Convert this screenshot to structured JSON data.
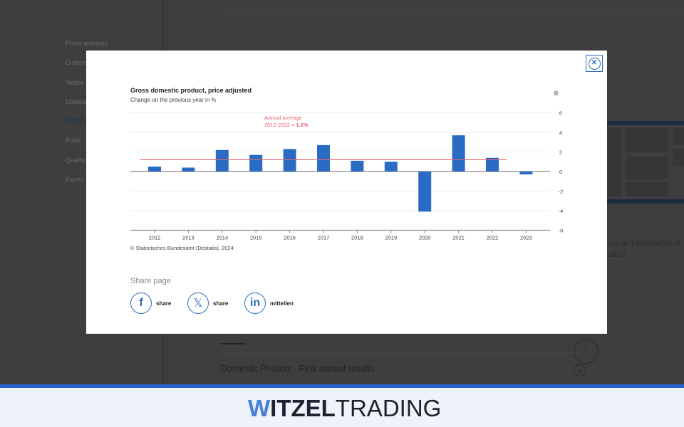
{
  "background": {
    "sidebar": [
      "Press releases",
      "Curren",
      "Tables",
      "Databa",
      "Graph",
      "Publi",
      "Quality",
      "Experi"
    ],
    "sidebar_active_index": 4,
    "text_fragment": [
      "use and distribution of",
      "oduct"
    ],
    "accordion_item": "Domestic Product - First annual results"
  },
  "modal": {
    "close_icon": "close-circle-icon",
    "menu_icon": "hamburger-icon",
    "share": {
      "heading": "Share page",
      "items": [
        {
          "icon": "facebook-icon",
          "glyph": "f",
          "label": "share"
        },
        {
          "icon": "x-icon",
          "glyph": "𝕏",
          "label": "share"
        },
        {
          "icon": "linkedin-icon",
          "glyph": "in",
          "label": "mitteilen"
        }
      ]
    }
  },
  "chart_data": {
    "type": "bar",
    "title": "Gross domestic product, price adjusted",
    "subtitle": "Change on the previous year in %",
    "categories": [
      "2012",
      "2013",
      "2014",
      "2015",
      "2016",
      "2017",
      "2018",
      "2019",
      "2020",
      "2021",
      "2022",
      "2023"
    ],
    "values": [
      0.5,
      0.4,
      2.2,
      1.7,
      2.3,
      2.7,
      1.1,
      1.0,
      -4.1,
      3.7,
      1.4,
      -0.3
    ],
    "ylim": [
      -6,
      6
    ],
    "yticks": [
      "6",
      "4",
      "2",
      "0",
      "-2",
      "-4",
      "-6"
    ],
    "y_axis_side": "right",
    "grid": true,
    "bar_color": "#2a6cc4",
    "reference_line": {
      "value": 1.2,
      "color": "#e8606e",
      "label_line1": "Annual average",
      "label_line2": "2012-2022 = ",
      "label_value": "1.2%"
    },
    "credit": "© Statistisches Bundesamt (Destatis), 2024"
  },
  "footer": {
    "logo_bold": "WITZEL",
    "logo_light": "TRADING",
    "accent": "#2a62c9"
  }
}
